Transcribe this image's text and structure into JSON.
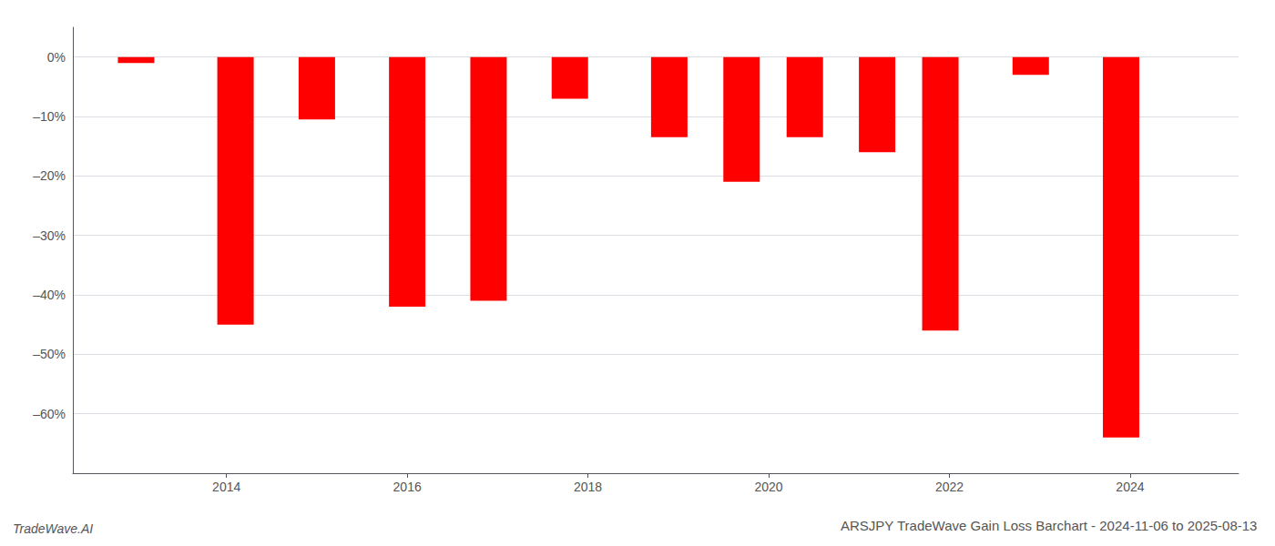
{
  "chart_data": {
    "type": "bar",
    "title": "ARSJPY TradeWave Gain Loss Barchart - 2024-11-06 to 2025-08-13",
    "annotations": [
      "TradeWave.AI"
    ],
    "x": [
      2013.0,
      2014.1,
      2015.0,
      2016.0,
      2016.9,
      2017.8,
      2018.9,
      2019.7,
      2020.4,
      2021.2,
      2021.9,
      2022.9,
      2023.9
    ],
    "values": [
      -1.0,
      -45.0,
      -10.5,
      -42.0,
      -41.0,
      -7.0,
      -13.5,
      -21.0,
      -13.5,
      -16.0,
      -46.0,
      -3.0,
      -64.0
    ],
    "color": "#FF0000",
    "xlim": [
      2012.3,
      2025.2
    ],
    "xticks": [
      2014,
      2016,
      2018,
      2020,
      2022,
      2024
    ],
    "ylim": [
      -70,
      5
    ],
    "yticks": [
      {
        "value": 0,
        "label": "0%"
      },
      {
        "value": -10,
        "label": "–10%"
      },
      {
        "value": -20,
        "label": "–20%"
      },
      {
        "value": -30,
        "label": "–30%"
      },
      {
        "value": -40,
        "label": "–40%"
      },
      {
        "value": -50,
        "label": "–50%"
      },
      {
        "value": -60,
        "label": "–60%"
      }
    ],
    "grid": true
  }
}
